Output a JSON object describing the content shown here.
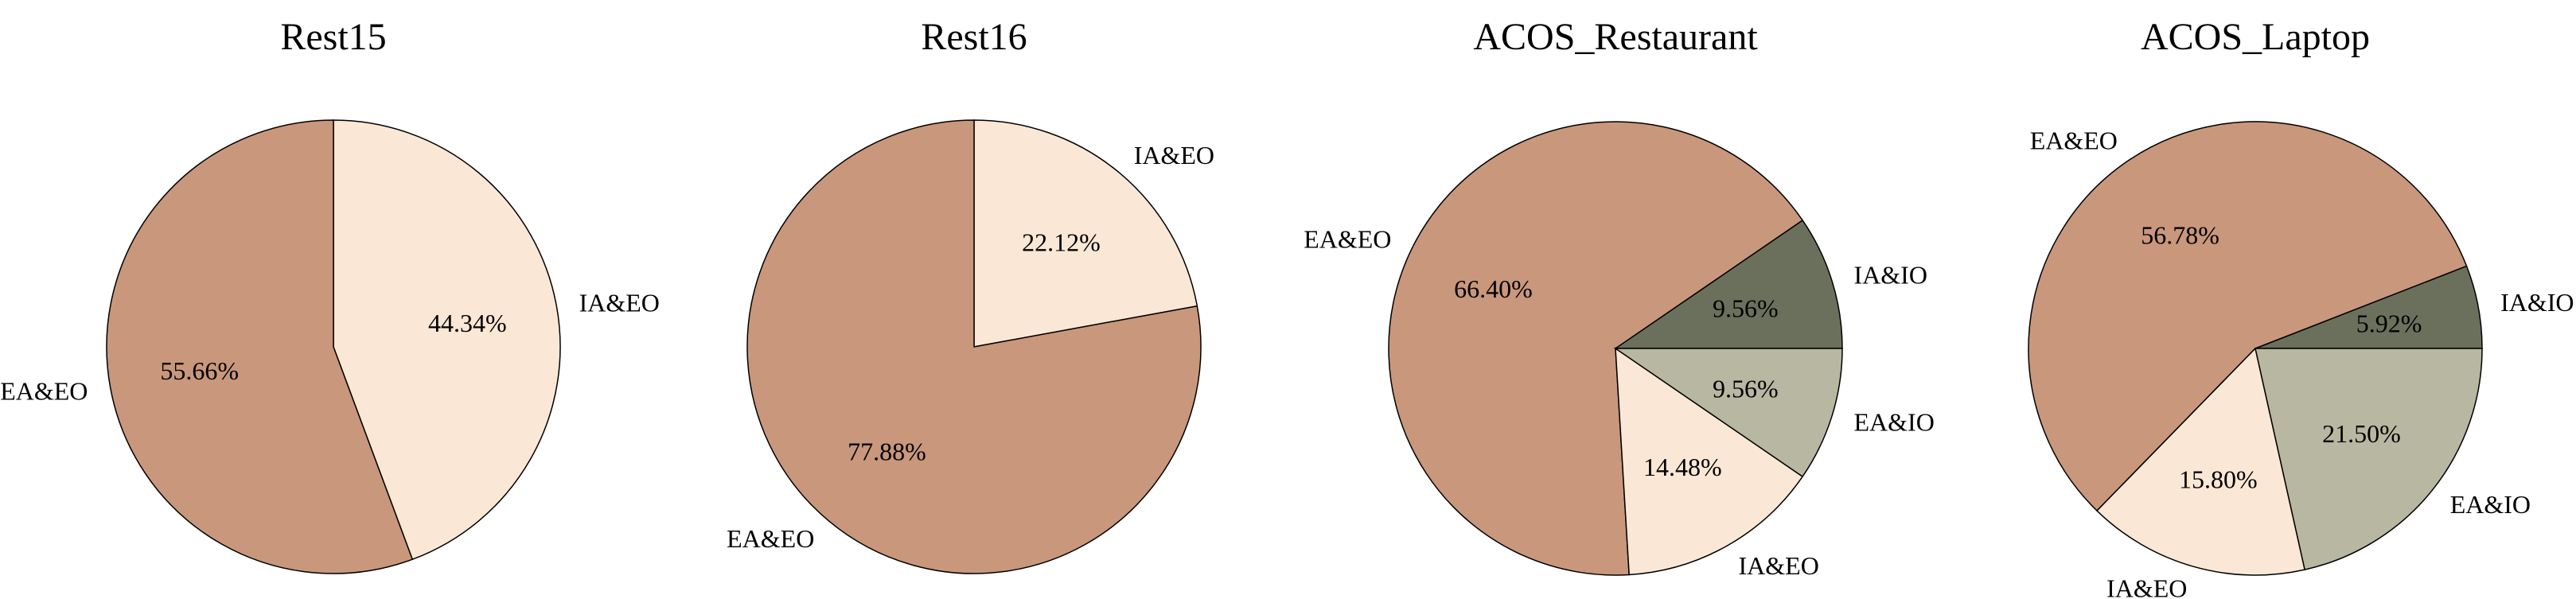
{
  "colors": {
    "EA&EO": "#C9977C",
    "IA&EO": "#FBE7D5",
    "EA&IO": "#B7B7A2",
    "IA&IO": "#6B705C"
  },
  "chart_data": [
    {
      "type": "pie",
      "title": "Rest15",
      "start_angle_deg": 90,
      "direction": "clockwise",
      "slices": [
        {
          "label": "IA&EO",
          "value": 44.34,
          "pct_text": "44.34%"
        },
        {
          "label": "EA&EO",
          "value": 55.66,
          "pct_text": "55.66%"
        }
      ]
    },
    {
      "type": "pie",
      "title": "Rest16",
      "start_angle_deg": 90,
      "direction": "clockwise",
      "slices": [
        {
          "label": "IA&EO",
          "value": 22.12,
          "pct_text": "22.12%"
        },
        {
          "label": "EA&EO",
          "value": 77.88,
          "pct_text": "77.88%"
        }
      ]
    },
    {
      "type": "pie",
      "title": "ACOS_Restaurant",
      "start_angle_deg": 0,
      "direction": "counterclockwise",
      "slices": [
        {
          "label": "IA&IO",
          "value": 9.56,
          "pct_text": "9.56%"
        },
        {
          "label": "EA&EO",
          "value": 66.4,
          "pct_text": "66.40%"
        },
        {
          "label": "IA&EO",
          "value": 14.48,
          "pct_text": "14.48%"
        },
        {
          "label": "EA&IO",
          "value": 9.56,
          "pct_text": "9.56%"
        }
      ]
    },
    {
      "type": "pie",
      "title": "ACOS_Laptop",
      "start_angle_deg": 0,
      "direction": "counterclockwise",
      "slices": [
        {
          "label": "IA&IO",
          "value": 5.92,
          "pct_text": "5.92%"
        },
        {
          "label": "EA&EO",
          "value": 56.78,
          "pct_text": "56.78%"
        },
        {
          "label": "IA&EO",
          "value": 15.8,
          "pct_text": "15.80%"
        },
        {
          "label": "EA&IO",
          "value": 21.5,
          "pct_text": "21.50%"
        }
      ]
    }
  ]
}
